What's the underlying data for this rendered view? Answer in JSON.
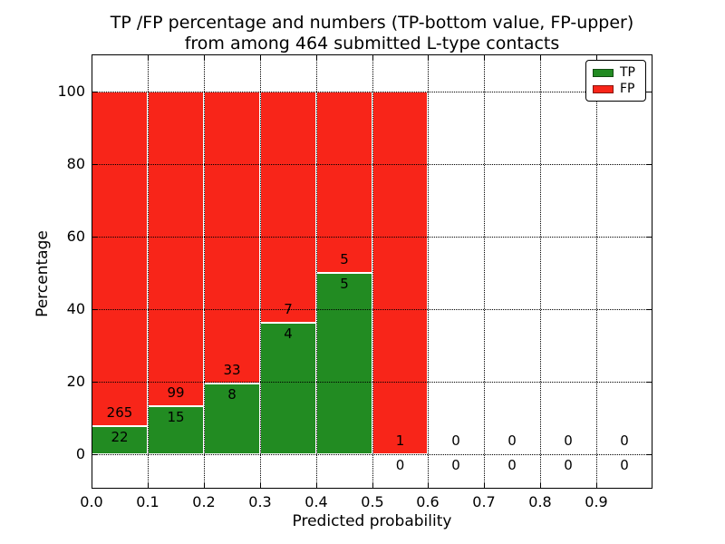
{
  "chart_data": {
    "type": "bar",
    "stacked": true,
    "title_line1": "TP /FP percentage and numbers (TP-bottom value, FP-upper)",
    "title_line2": "from among 464 submitted L-type contacts",
    "xlabel": "Predicted probability",
    "ylabel": "Percentage",
    "xlim": [
      0.0,
      1.0
    ],
    "ylim": [
      -9.5,
      110.3
    ],
    "xticks": [
      "0.0",
      "0.1",
      "0.2",
      "0.3",
      "0.4",
      "0.5",
      "0.6",
      "0.7",
      "0.8",
      "0.9"
    ],
    "yticks": [
      0,
      20,
      40,
      60,
      80,
      100
    ],
    "grid": "dotted",
    "legend_position": "upper right",
    "legend": [
      {
        "label": "TP",
        "color": "#228b22"
      },
      {
        "label": "FP",
        "color": "#f82519"
      }
    ],
    "total_submitted": 464,
    "bins": [
      {
        "range": [
          0.0,
          0.1
        ],
        "tp": 22,
        "fp": 265,
        "tp_pct": 7.7,
        "fp_pct": 92.3
      },
      {
        "range": [
          0.1,
          0.2
        ],
        "tp": 15,
        "fp": 99,
        "tp_pct": 13.2,
        "fp_pct": 86.8
      },
      {
        "range": [
          0.2,
          0.3
        ],
        "tp": 8,
        "fp": 33,
        "tp_pct": 19.5,
        "fp_pct": 80.5
      },
      {
        "range": [
          0.3,
          0.4
        ],
        "tp": 4,
        "fp": 7,
        "tp_pct": 36.4,
        "fp_pct": 63.6
      },
      {
        "range": [
          0.4,
          0.5
        ],
        "tp": 5,
        "fp": 5,
        "tp_pct": 50.0,
        "fp_pct": 50.0
      },
      {
        "range": [
          0.5,
          0.6
        ],
        "tp": 0,
        "fp": 1,
        "tp_pct": 0.0,
        "fp_pct": 100.0
      },
      {
        "range": [
          0.6,
          0.7
        ],
        "tp": 0,
        "fp": 0,
        "tp_pct": 0.0,
        "fp_pct": 0.0
      },
      {
        "range": [
          0.7,
          0.8
        ],
        "tp": 0,
        "fp": 0,
        "tp_pct": 0.0,
        "fp_pct": 0.0
      },
      {
        "range": [
          0.8,
          0.9
        ],
        "tp": 0,
        "fp": 0,
        "tp_pct": 0.0,
        "fp_pct": 0.0
      },
      {
        "range": [
          0.9,
          1.0
        ],
        "tp": 0,
        "fp": 0,
        "tp_pct": 0.0,
        "fp_pct": 0.0
      }
    ]
  }
}
